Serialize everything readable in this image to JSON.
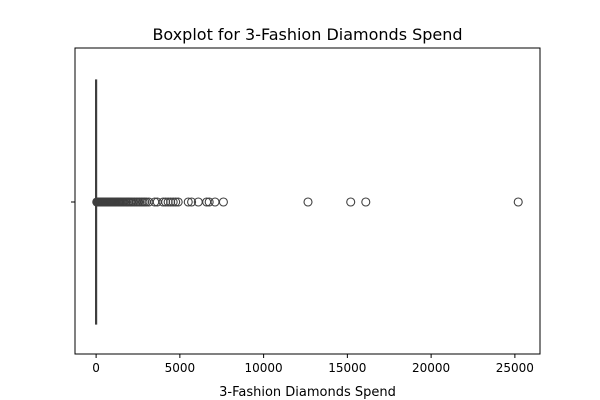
{
  "chart_data": {
    "type": "box",
    "title": "Boxplot for 3-Fashion Diamonds Spend",
    "xlabel": "3-Fashion Diamonds Spend",
    "ylabel": "",
    "orientation": "horizontal",
    "xlim": [
      -1260,
      26500
    ],
    "xticks": [
      0,
      5000,
      10000,
      15000,
      20000,
      25000
    ],
    "xtick_labels": [
      "0",
      "5000",
      "10000",
      "15000",
      "20000",
      "25000"
    ],
    "ytick_labels": [
      ""
    ],
    "grid": false,
    "stats": {
      "whisker_low": 0,
      "q1": 0,
      "median": 0,
      "q3": 0,
      "whisker_high": 0
    },
    "outliers": [
      40,
      60,
      80,
      100,
      120,
      150,
      180,
      210,
      240,
      270,
      300,
      340,
      380,
      420,
      460,
      500,
      550,
      600,
      650,
      700,
      750,
      800,
      850,
      900,
      950,
      1000,
      1060,
      1120,
      1180,
      1240,
      1300,
      1360,
      1420,
      1480,
      1550,
      1620,
      1700,
      1780,
      1860,
      1940,
      2020,
      2100,
      2200,
      2300,
      2400,
      2500,
      2600,
      2700,
      2800,
      2900,
      3000,
      3150,
      3500,
      3650,
      4000,
      4150,
      4300,
      4450,
      4600,
      4750,
      4900,
      5500,
      5700,
      6100,
      6600,
      6750,
      7100,
      7600,
      12650,
      15200,
      16100,
      25200
    ],
    "colors": {
      "box_edge": "#3f3f3f",
      "box_fill": "#3274a1",
      "marker_edge": "#3f3f3f",
      "marker_fill": "none"
    }
  }
}
